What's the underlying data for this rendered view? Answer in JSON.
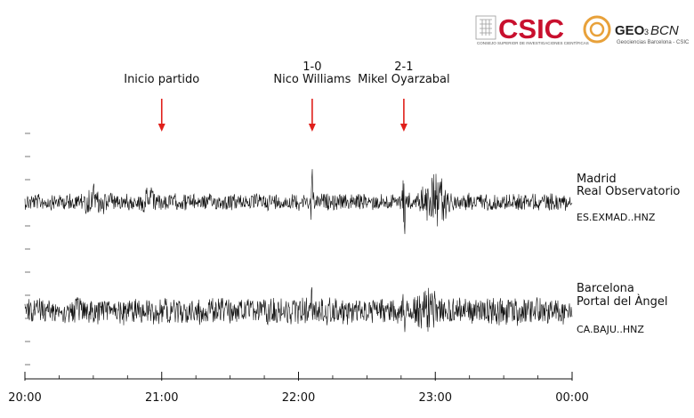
{
  "logos": {
    "csic_text": "CSIC",
    "csic_subtitle": "CONSEJO SUPERIOR DE INVESTIGACIONES CIENTÍFICAS",
    "geo_text": "GEO",
    "geo_number": "3",
    "bcn_text": "BCN",
    "geo_subtitle": "Geociencias Barcelona - CSIC",
    "csic_color": "#c8102e",
    "geo_color": "#e8a13a"
  },
  "chart_data": {
    "type": "line",
    "x_axis": {
      "range": [
        "20:00",
        "00:00"
      ],
      "tick_labels": [
        "20:00",
        "21:00",
        "22:00",
        "23:00",
        "00:00"
      ],
      "tick_values_hours": [
        20,
        21,
        22,
        23,
        24
      ],
      "minor_ticks_per_major": 4
    },
    "annotations": [
      {
        "lines": [
          "Inicio partido"
        ],
        "time": "21:00",
        "hour": 21.0,
        "arrow_color": "#e0201b"
      },
      {
        "lines": [
          "1-0",
          "Nico Williams"
        ],
        "time": "22:06",
        "hour": 22.1,
        "arrow_color": "#e0201b"
      },
      {
        "lines": [
          "2-1",
          "Mikel Oyarzabal"
        ],
        "time": "22:46",
        "hour": 22.77,
        "arrow_color": "#e0201b"
      }
    ],
    "series": [
      {
        "name_lines": [
          "Madrid",
          "Real Observatorio"
        ],
        "code": "ES.EXMAD..HNZ",
        "baseline_amplitude": 0.15,
        "bursts": [
          {
            "hour": 20.5,
            "amplitude": 0.35,
            "width": 0.2
          },
          {
            "hour": 20.9,
            "amplitude": 0.3,
            "width": 0.15
          },
          {
            "hour": 22.1,
            "amplitude": 1.0,
            "width": 0.015
          },
          {
            "hour": 22.77,
            "amplitude": 1.1,
            "width": 0.015
          },
          {
            "hour": 23.0,
            "amplitude": 0.6,
            "width": 0.18
          }
        ]
      },
      {
        "name_lines": [
          "Barcelona",
          "Portal del Àngel"
        ],
        "code": "CA.BAJU..HNZ",
        "baseline_amplitude": 0.3,
        "bursts": [
          {
            "hour": 22.1,
            "amplitude": 0.7,
            "width": 0.02
          },
          {
            "hour": 22.77,
            "amplitude": 0.6,
            "width": 0.04
          },
          {
            "hour": 22.95,
            "amplitude": 0.55,
            "width": 0.25
          },
          {
            "hour": 23.45,
            "amplitude": 0.35,
            "width": 0.3
          }
        ]
      }
    ],
    "colors": {
      "trace": "#111111",
      "arrow": "#e0201b"
    },
    "grid": false,
    "legend": "right"
  }
}
